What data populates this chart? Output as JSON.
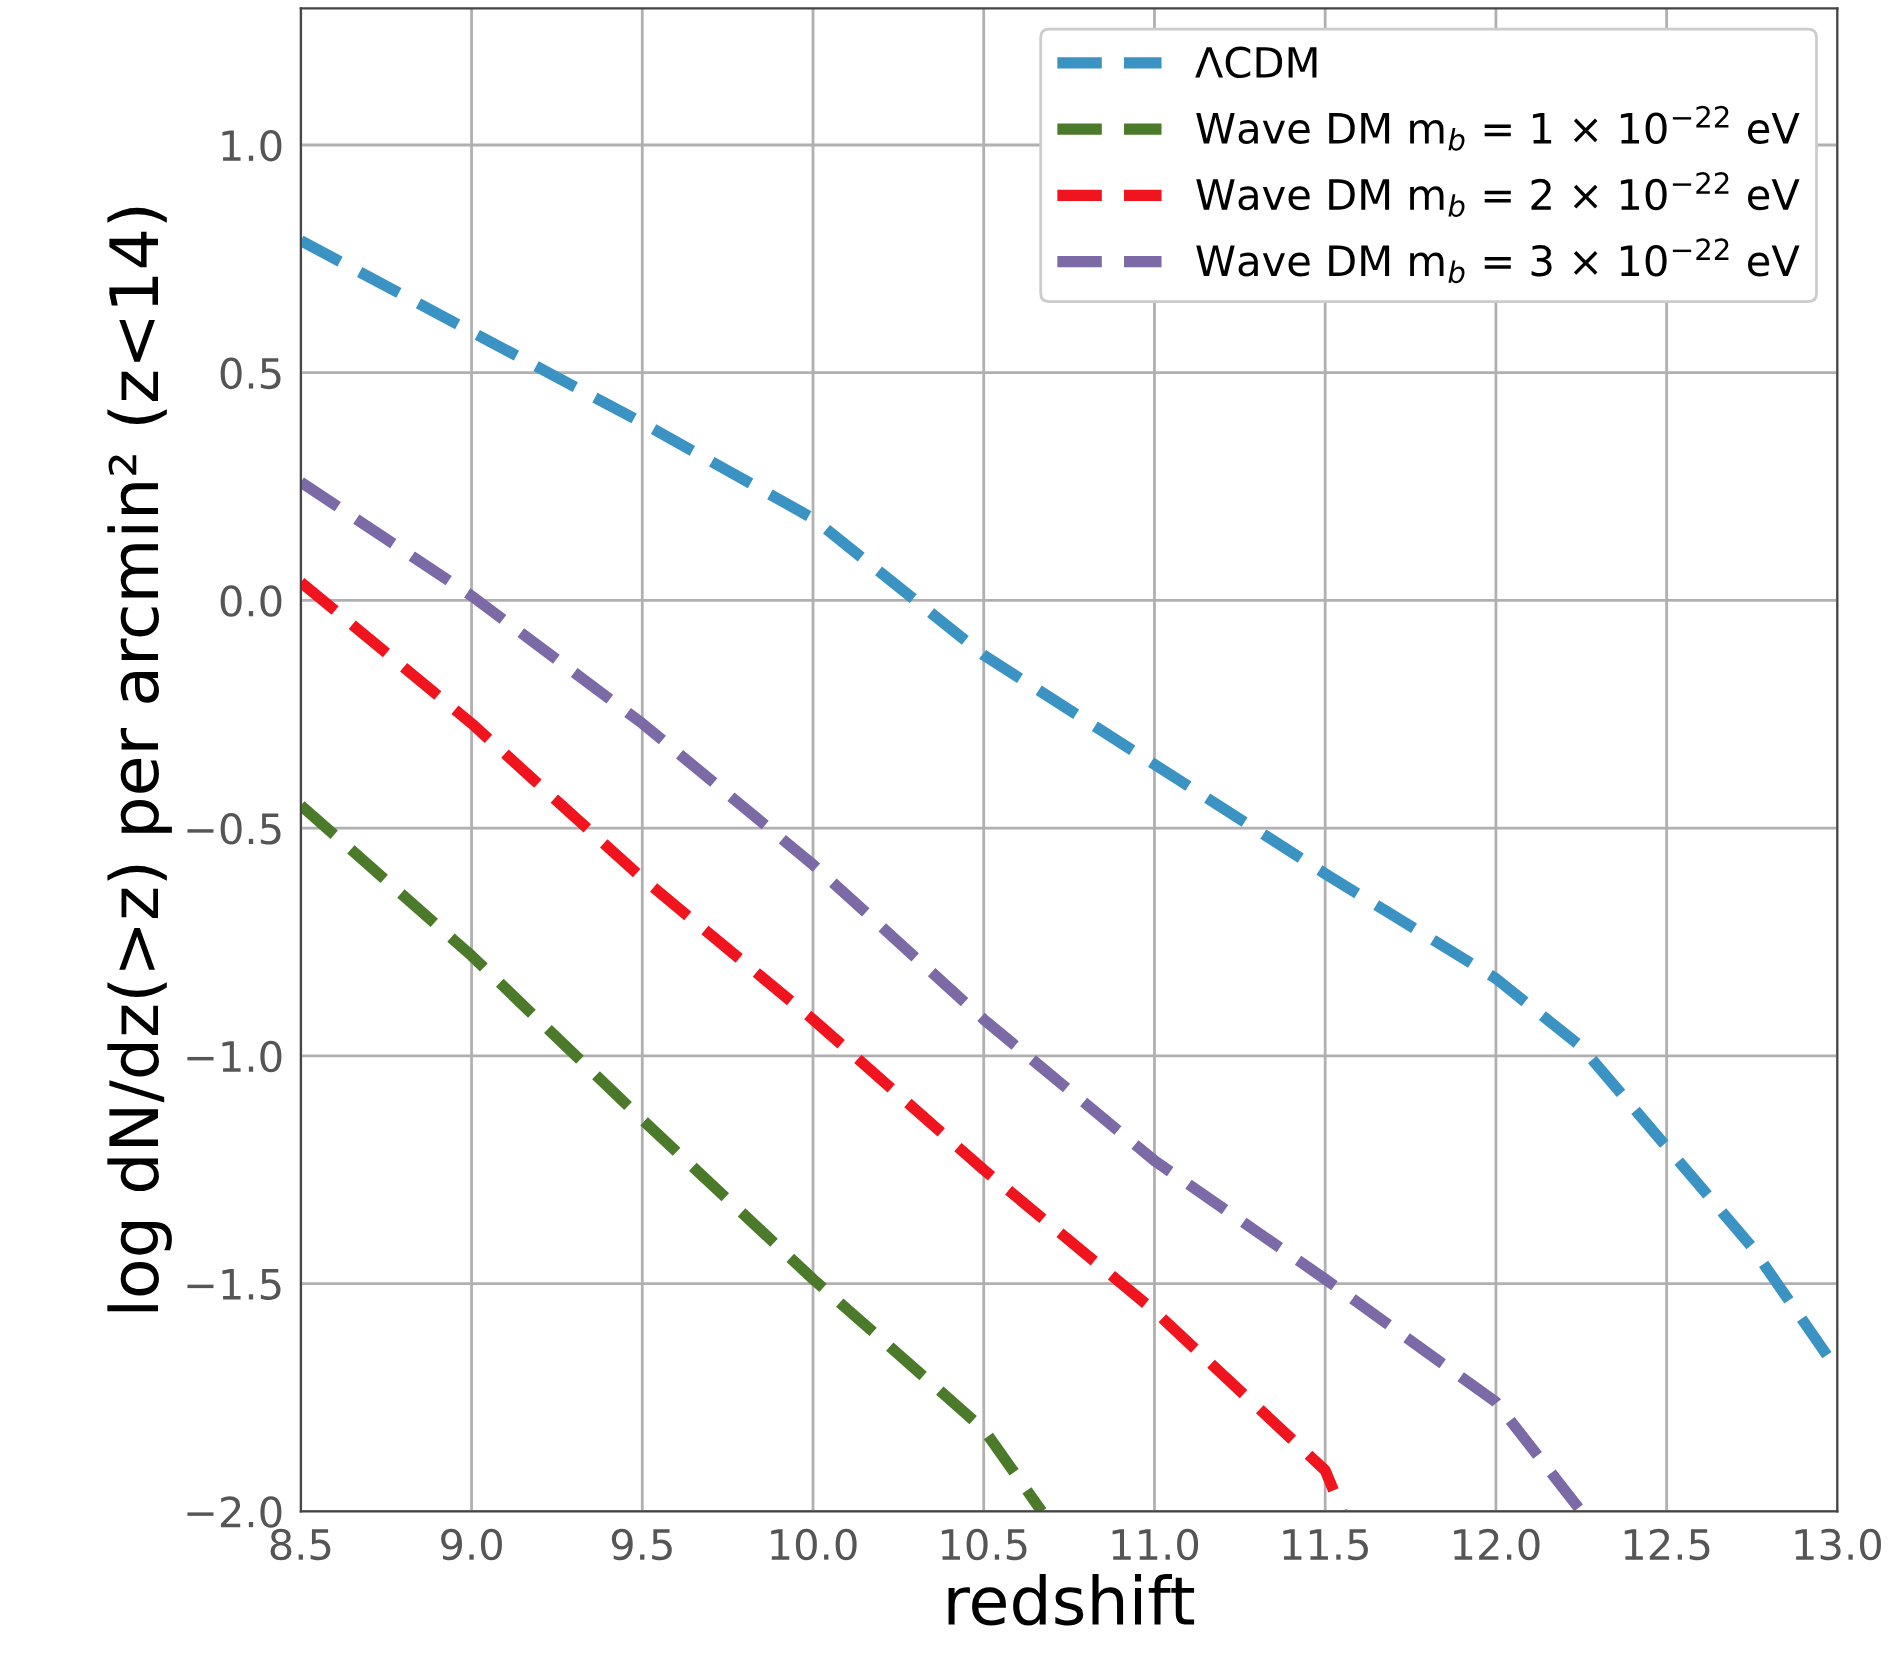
{
  "chart_data": {
    "type": "line",
    "xlabel": "redshift",
    "ylabel": "log dN/dz(>z) per arcmin² (z<14)",
    "xlim": [
      8.5,
      13.0
    ],
    "xticks": [
      {
        "value": 8.5,
        "label": "8.5"
      },
      {
        "value": 9.0,
        "label": "9.0"
      },
      {
        "value": 9.5,
        "label": "9.5"
      },
      {
        "value": 10.0,
        "label": "10.0"
      },
      {
        "value": 10.5,
        "label": "10.5"
      },
      {
        "value": 11.0,
        "label": "11.0"
      },
      {
        "value": 11.5,
        "label": "11.5"
      },
      {
        "value": 12.0,
        "label": "12.0"
      },
      {
        "value": 12.5,
        "label": "12.5"
      },
      {
        "value": 13.0,
        "label": "13.0"
      }
    ],
    "ylim": [
      -2.0,
      1.3
    ],
    "yticks": [
      {
        "value": -2.0,
        "label": "−2.0"
      },
      {
        "value": -1.5,
        "label": "−1.5"
      },
      {
        "value": -1.0,
        "label": "−1.0"
      },
      {
        "value": -0.5,
        "label": "−0.5"
      },
      {
        "value": 0.0,
        "label": "0.0"
      },
      {
        "value": 0.5,
        "label": "0.5"
      },
      {
        "value": 1.0,
        "label": "1.0"
      }
    ],
    "grid": true,
    "legend": "top right",
    "line_style": "dashed",
    "marker": "none",
    "series": [
      {
        "name": "ΛCDM",
        "color": "#3a93c3",
        "x": [
          8.5,
          9.0,
          9.5,
          10.0,
          10.5,
          11.0,
          11.5,
          12.0,
          12.25,
          12.5,
          12.75,
          13.0
        ],
        "values": [
          0.79,
          0.59,
          0.39,
          0.18,
          -0.12,
          -0.36,
          -0.6,
          -0.83,
          -0.98,
          -1.2,
          -1.42,
          -1.69
        ]
      },
      {
        "name": "Wave DM m$_{b}$ = 1 × 10$^{−22}$ eV",
        "color": "#4a7a2a",
        "x": [
          8.5,
          9.0,
          9.5,
          10.0,
          10.5,
          10.67
        ],
        "values": [
          -0.45,
          -0.78,
          -1.14,
          -1.49,
          -1.82,
          -2.0
        ]
      },
      {
        "name": "Wave DM m$_{b}$ = 2 × 10$^{−22}$ eV",
        "color": "#f0141e",
        "x": [
          8.5,
          9.0,
          9.5,
          10.0,
          10.5,
          11.0,
          11.5,
          11.55
        ],
        "values": [
          0.04,
          -0.27,
          -0.61,
          -0.92,
          -1.25,
          -1.56,
          -1.91,
          -2.0
        ]
      },
      {
        "name": "Wave DM m$_{b}$ = 3 × 10$^{−22}$ eV",
        "color": "#7b6aa6",
        "x": [
          8.5,
          9.0,
          9.5,
          10.0,
          10.5,
          11.0,
          11.5,
          12.0,
          12.25
        ],
        "values": [
          0.26,
          0.01,
          -0.27,
          -0.58,
          -0.92,
          -1.23,
          -1.49,
          -1.76,
          -2.0
        ]
      }
    ]
  }
}
